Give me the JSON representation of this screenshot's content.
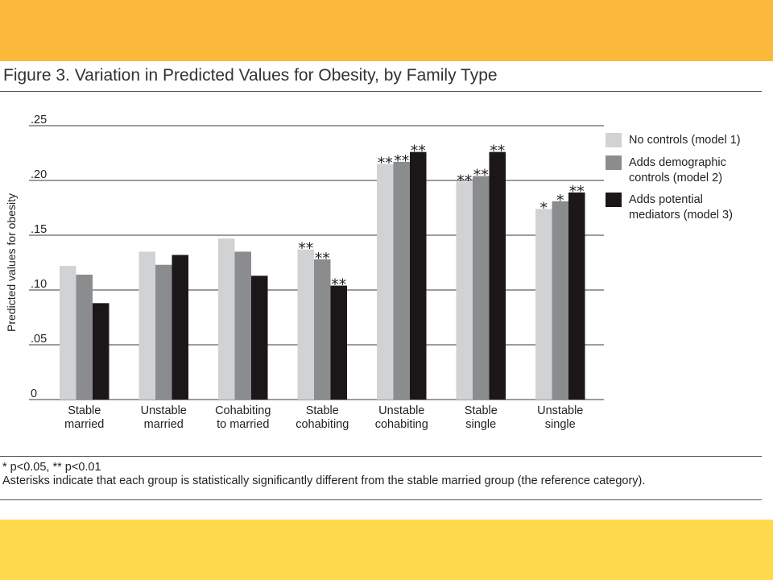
{
  "colors": {
    "top_band": "#fbb93b",
    "bottom_band": "#ffd94c",
    "series": [
      "#d0d2d3",
      "#8b8c8e",
      "#1b1718"
    ]
  },
  "figure": {
    "title": "Figure 3. Variation in Predicted Values for Obesity, by Family Type"
  },
  "notes": {
    "significance": "* p<0.05, ** p<0.01",
    "explanation": "Asterisks indicate that each group is statistically significantly different from the stable married group (the reference category)."
  },
  "chart_data": {
    "type": "bar",
    "title": "",
    "xlabel": "",
    "ylabel": "Predicted values for obesity",
    "ylim": [
      0,
      0.25
    ],
    "yticks": [
      0,
      0.05,
      0.1,
      0.15,
      0.2,
      0.25
    ],
    "ytick_labels": [
      "0",
      ".05",
      ".10",
      ".15",
      ".20",
      ".25"
    ],
    "grid": true,
    "legend_position": "right",
    "categories": [
      [
        "Stable",
        "married"
      ],
      [
        "Unstable",
        "married"
      ],
      [
        "Cohabiting",
        "to married"
      ],
      [
        "Stable",
        "cohabiting"
      ],
      [
        "Unstable",
        "cohabiting"
      ],
      [
        "Stable",
        "single"
      ],
      [
        "Unstable",
        "single"
      ]
    ],
    "series": [
      {
        "name": [
          "No controls (model 1)"
        ],
        "values": [
          0.122,
          0.135,
          0.147,
          0.137,
          0.215,
          0.199,
          0.174
        ],
        "significance": [
          "",
          "",
          "",
          "**",
          "**",
          "**",
          "*"
        ]
      },
      {
        "name": [
          "Adds demographic",
          "controls (model 2)"
        ],
        "values": [
          0.114,
          0.123,
          0.135,
          0.128,
          0.217,
          0.204,
          0.181
        ],
        "significance": [
          "",
          "",
          "",
          "**",
          "**",
          "**",
          "*"
        ]
      },
      {
        "name": [
          "Adds potential",
          "mediators (model 3)"
        ],
        "values": [
          0.088,
          0.132,
          0.113,
          0.104,
          0.226,
          0.226,
          0.189
        ],
        "significance": [
          "",
          "",
          "",
          "**",
          "**",
          "**",
          "**"
        ]
      }
    ]
  }
}
